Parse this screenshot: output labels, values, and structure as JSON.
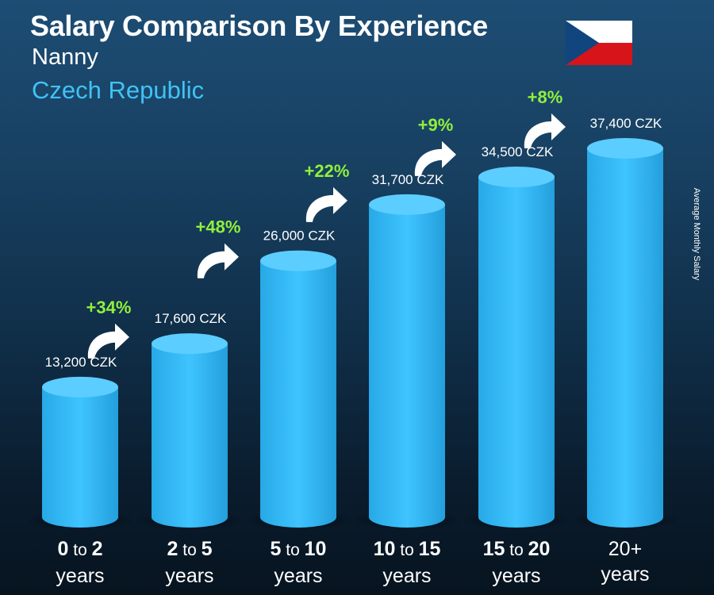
{
  "header": {
    "title": "Salary Comparison By Experience",
    "subtitle": "Nanny",
    "country": "Czech Republic"
  },
  "side_label": "Average Monthly Salary",
  "flag": {
    "name": "czech-flag",
    "colors": [
      "#ffffff",
      "#d7141a",
      "#11457e"
    ]
  },
  "colors": {
    "bar": "#29b3f1",
    "bar_light": "#3ec3ff",
    "bar_top": "#5ccdff",
    "percent": "#8ff03c",
    "value_text": "#ffffff"
  },
  "chart_data": {
    "type": "bar",
    "title": "Salary Comparison By Experience",
    "categories": [
      "0 to 2 years",
      "2 to 5 years",
      "5 to 10 years",
      "10 to 15 years",
      "15 to 20 years",
      "20+ years"
    ],
    "category_parts": [
      {
        "from": "0",
        "to_word": "to",
        "to": "2",
        "unit": "years"
      },
      {
        "from": "2",
        "to_word": "to",
        "to": "5",
        "unit": "years"
      },
      {
        "from": "5",
        "to_word": "to",
        "to": "10",
        "unit": "years"
      },
      {
        "from": "10",
        "to_word": "to",
        "to": "15",
        "unit": "years"
      },
      {
        "from": "15",
        "to_word": "to",
        "to": "20",
        "unit": "years"
      },
      {
        "from": "20+",
        "to_word": "",
        "to": "",
        "unit": "years"
      }
    ],
    "values": [
      13200,
      17600,
      26000,
      31700,
      34500,
      37400
    ],
    "value_labels": [
      "13,200 CZK",
      "17,600 CZK",
      "26,000 CZK",
      "31,700 CZK",
      "34,500 CZK",
      "37,400 CZK"
    ],
    "percent_changes": [
      "+34%",
      "+48%",
      "+22%",
      "+9%",
      "+8%"
    ],
    "ylabel": "Average Monthly Salary",
    "unit": "CZK"
  }
}
